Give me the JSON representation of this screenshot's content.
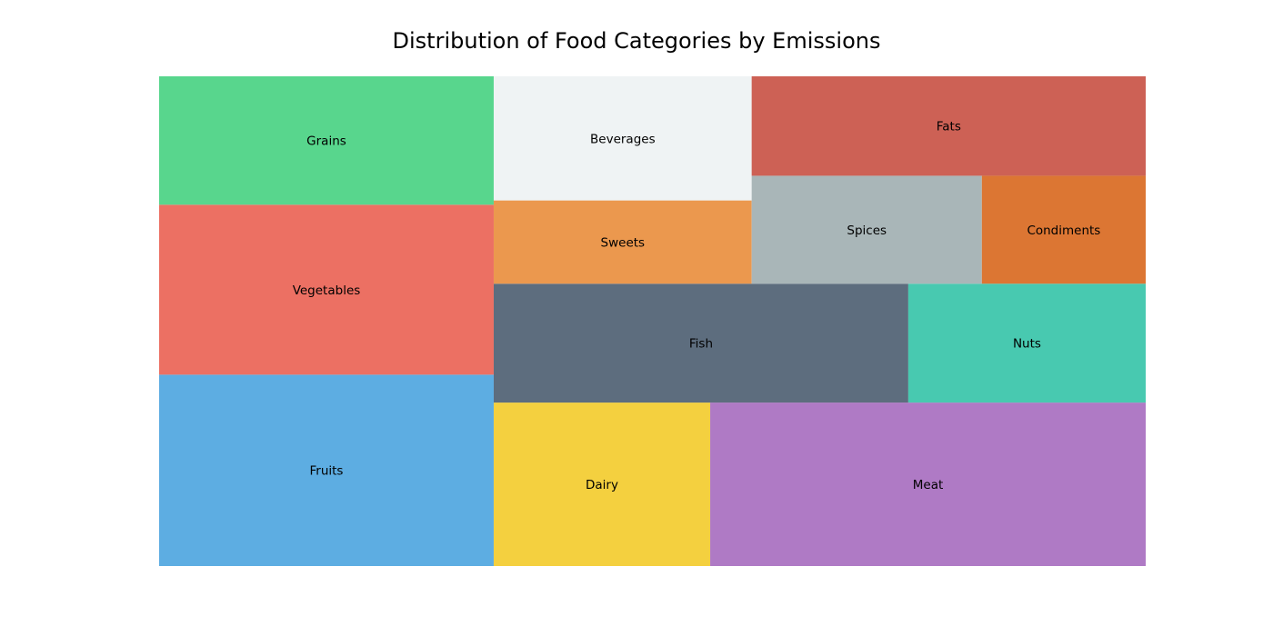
{
  "chart_data": {
    "type": "treemap",
    "title": "Distribution of Food Categories by Emissions",
    "items": [
      {
        "label": "Fruits",
        "value": 152,
        "color": "#5dade2"
      },
      {
        "label": "Vegetables",
        "value": 135,
        "color": "#ec7063"
      },
      {
        "label": "Grains",
        "value": 102,
        "color": "#58d68d"
      },
      {
        "label": "Meat",
        "value": 169,
        "color": "#af7ac5"
      },
      {
        "label": "Dairy",
        "value": 84,
        "color": "#f4d03f"
      },
      {
        "label": "Fish",
        "value": 117,
        "color": "#5d6d7e"
      },
      {
        "label": "Nuts",
        "value": 67,
        "color": "#48c9b0"
      },
      {
        "label": "Sweets",
        "value": 51,
        "color": "#eb984e"
      },
      {
        "label": "Beverages",
        "value": 76,
        "color": "#eff3f4"
      },
      {
        "label": "Fats",
        "value": 93,
        "color": "#cd6155"
      },
      {
        "label": "Spices",
        "value": 59,
        "color": "#a9b6b8"
      },
      {
        "label": "Condiments",
        "value": 42,
        "color": "#dc7633"
      }
    ]
  }
}
